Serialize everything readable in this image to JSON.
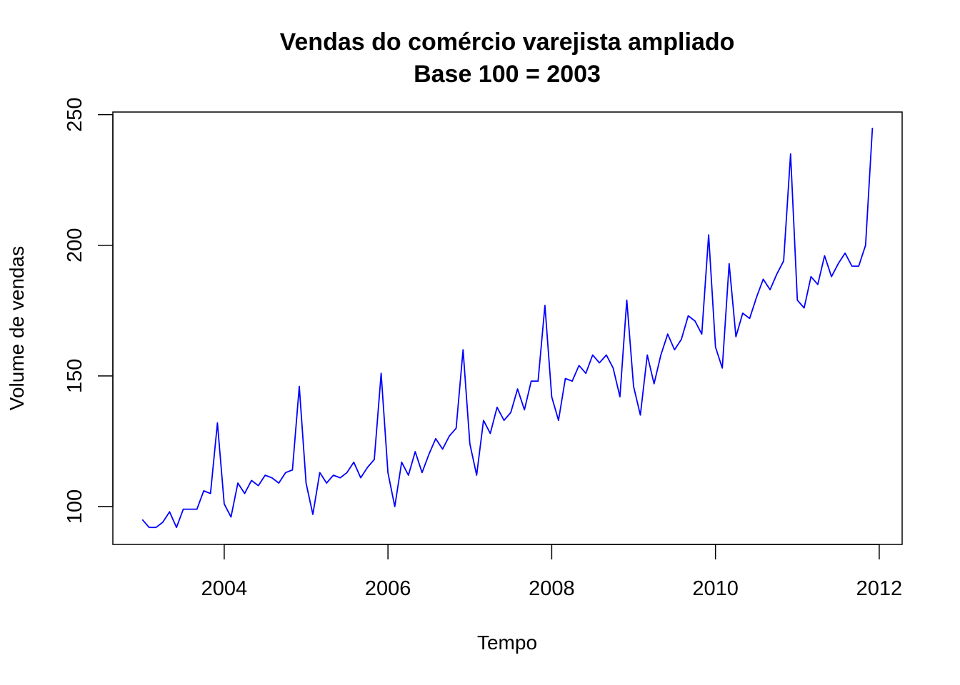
{
  "chart_data": {
    "type": "line",
    "title": "Vendas do comércio varejista ampliado",
    "subtitle": "Base 100 = 2003",
    "xlabel": "Tempo",
    "ylabel": "Volume de vendas",
    "x_ticks": [
      2004,
      2006,
      2008,
      2010,
      2012
    ],
    "y_ticks": [
      100,
      150,
      200,
      250
    ],
    "xlim": [
      2002.64,
      2012.28
    ],
    "ylim": [
      85.5,
      251
    ],
    "grid": false,
    "legend": "none",
    "line_color": "#0000ff",
    "series": [
      {
        "x": [
          2003.0,
          2003.083,
          2003.167,
          2003.25,
          2003.333,
          2003.417,
          2003.5,
          2003.583,
          2003.667,
          2003.75,
          2003.833,
          2003.917,
          2004.0,
          2004.083,
          2004.167,
          2004.25,
          2004.333,
          2004.417,
          2004.5,
          2004.583,
          2004.667,
          2004.75,
          2004.833,
          2004.917,
          2005.0,
          2005.083,
          2005.167,
          2005.25,
          2005.333,
          2005.417,
          2005.5,
          2005.583,
          2005.667,
          2005.75,
          2005.833,
          2005.917,
          2006.0,
          2006.083,
          2006.167,
          2006.25,
          2006.333,
          2006.417,
          2006.5,
          2006.583,
          2006.667,
          2006.75,
          2006.833,
          2006.917,
          2007.0,
          2007.083,
          2007.167,
          2007.25,
          2007.333,
          2007.417,
          2007.5,
          2007.583,
          2007.667,
          2007.75,
          2007.833,
          2007.917,
          2008.0,
          2008.083,
          2008.167,
          2008.25,
          2008.333,
          2008.417,
          2008.5,
          2008.583,
          2008.667,
          2008.75,
          2008.833,
          2008.917,
          2009.0,
          2009.083,
          2009.167,
          2009.25,
          2009.333,
          2009.417,
          2009.5,
          2009.583,
          2009.667,
          2009.75,
          2009.833,
          2009.917,
          2010.0,
          2010.083,
          2010.167,
          2010.25,
          2010.333,
          2010.417,
          2010.5,
          2010.583,
          2010.667,
          2010.75,
          2010.833,
          2010.917,
          2011.0,
          2011.083,
          2011.167,
          2011.25,
          2011.333,
          2011.417,
          2011.5,
          2011.583,
          2011.667,
          2011.75,
          2011.833,
          2011.917
        ],
        "y": [
          95,
          92,
          92,
          94,
          98,
          92,
          99,
          99,
          99,
          106,
          105,
          132,
          101,
          96,
          109,
          105,
          110,
          108,
          112,
          111,
          109,
          113,
          114,
          146,
          109,
          97,
          113,
          109,
          112,
          111,
          113,
          117,
          111,
          115,
          118,
          151,
          113,
          100,
          117,
          112,
          121,
          113,
          120,
          126,
          122,
          127,
          130,
          160,
          124,
          112,
          133,
          128,
          138,
          133,
          136,
          145,
          137,
          148,
          148,
          177,
          142,
          133,
          149,
          148,
          154,
          151,
          158,
          155,
          158,
          153,
          142,
          179,
          146,
          135,
          158,
          147,
          158,
          166,
          160,
          164,
          173,
          171,
          166,
          204,
          161,
          153,
          193,
          165,
          174,
          172,
          180,
          187,
          183,
          189,
          194,
          235,
          179,
          176,
          188,
          185,
          196,
          188,
          193,
          197,
          192,
          192,
          200,
          245
        ]
      }
    ]
  }
}
